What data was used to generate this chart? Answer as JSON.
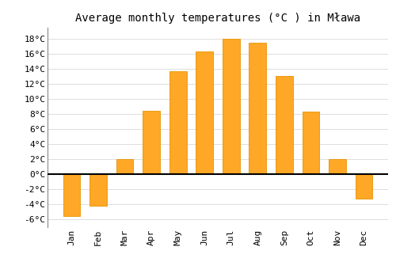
{
  "title": "Average monthly temperatures (°C ) in Mława",
  "months": [
    "Jan",
    "Feb",
    "Mar",
    "Apr",
    "May",
    "Jun",
    "Jul",
    "Aug",
    "Sep",
    "Oct",
    "Nov",
    "Dec"
  ],
  "temperatures": [
    -5.5,
    -4.2,
    2.0,
    8.5,
    13.7,
    16.3,
    18.0,
    17.5,
    13.1,
    8.4,
    2.0,
    -3.2
  ],
  "bar_color": "#FFA726",
  "bar_edge_color": "#E69500",
  "background_color": "#FFFFFF",
  "plot_bg_color": "#FFFFFF",
  "grid_color": "#DDDDDD",
  "ylim": [
    -7,
    19.5
  ],
  "yticks": [
    -6,
    -4,
    -2,
    0,
    2,
    4,
    6,
    8,
    10,
    12,
    14,
    16,
    18
  ],
  "title_fontsize": 10,
  "tick_fontsize": 8,
  "bar_width": 0.65
}
